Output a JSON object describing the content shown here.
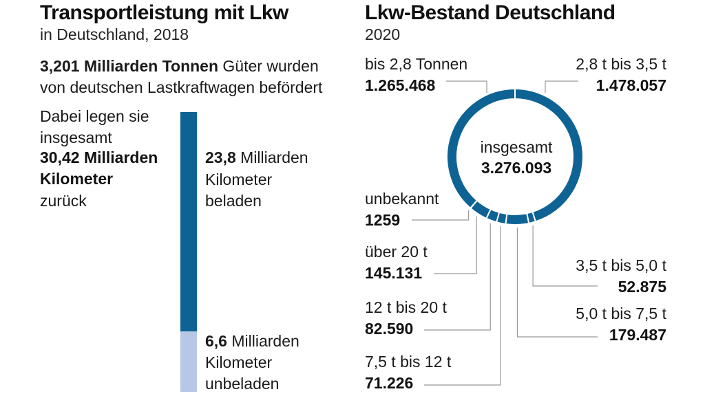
{
  "left": {
    "title": "Transportleistung mit Lkw",
    "subtitle": "in Deutschland, 2018",
    "tonnes_bold": "3,201 Milliarden Tonnen",
    "tonnes_rest": " Güter wurden",
    "tonnes_line2": "von deutschen Lastkraftwagen befördert",
    "km_intro_1": "Dabei legen sie",
    "km_intro_2": "insgesamt",
    "km_total_1": "30,42 Milliarden",
    "km_total_2": "Kilometer",
    "km_back": "zurück",
    "loaded_value": "23,8",
    "loaded_unit": " Milliarden",
    "loaded_l2": "Kilometer",
    "loaded_l3": "beladen",
    "empty_value": "6,6",
    "empty_unit": " Milliarden",
    "empty_l2": "Kilometer",
    "empty_l3": "unbeladen"
  },
  "right": {
    "title": "Lkw-Bestand Deutschland",
    "subtitle": "2020",
    "center_label": "insgesamt",
    "center_value": "3.276.093"
  },
  "colors": {
    "dark_blue": "#0e6394",
    "light_blue": "#b7c8e6",
    "leader": "#999999"
  },
  "chart_data": [
    {
      "type": "bar",
      "stacked": true,
      "categories": [
        "beladen",
        "unbeladen"
      ],
      "values": [
        23.8,
        6.6
      ],
      "total": 30.42
    },
    {
      "type": "pie",
      "donut": true,
      "total": 3276093,
      "slices": [
        {
          "label": "2,8 t bis 3,5 t",
          "value": 1478057,
          "value_text": "1.478.057"
        },
        {
          "label": "3,5 t bis 5,0 t",
          "value": 52875,
          "value_text": "52.875"
        },
        {
          "label": "5,0 t bis 7,5 t",
          "value": 179487,
          "value_text": "179.487"
        },
        {
          "label": "7,5 t bis 12 t",
          "value": 71226,
          "value_text": "71.226"
        },
        {
          "label": "12 t bis 20 t",
          "value": 82590,
          "value_text": "82.590"
        },
        {
          "label": "über 20 t",
          "value": 145131,
          "value_text": "145.131"
        },
        {
          "label": "unbekannt",
          "value": 1259,
          "value_text": "1259"
        },
        {
          "label": "bis 2,8 Tonnen",
          "value": 1265468,
          "value_text": "1.265.468"
        }
      ]
    }
  ]
}
